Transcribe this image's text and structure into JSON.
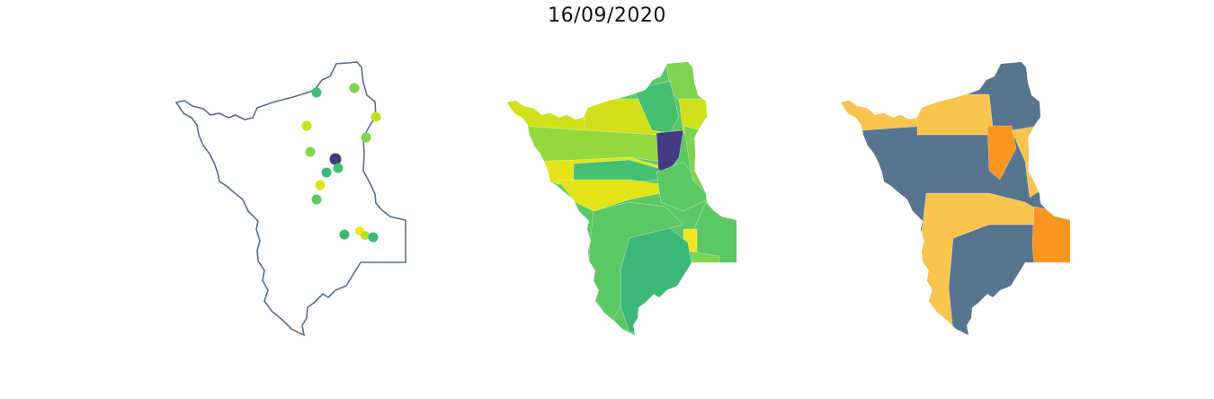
{
  "figure": {
    "title": "16/09/2020"
  },
  "colors": {
    "outline": "#557088",
    "viridis_purple": "#443a83",
    "viridis_teal_green": "#3bb877",
    "viridis_green": "#5cc765",
    "viridis_light_green": "#7ed34f",
    "viridis_yellow_green": "#a7da33",
    "viridis_lime": "#d0e11c",
    "viridis_yellow": "#e7e419",
    "slate": "#587590",
    "light_orange": "#f9c54f",
    "orange": "#f8961e"
  },
  "panels": [
    {
      "name": "point-map",
      "kind": "outline-with-station-points",
      "point_count": 14
    },
    {
      "name": "choropleth-viridis",
      "kind": "filled-regions"
    },
    {
      "name": "choropleth-categorical",
      "kind": "filled-regions"
    }
  ]
}
